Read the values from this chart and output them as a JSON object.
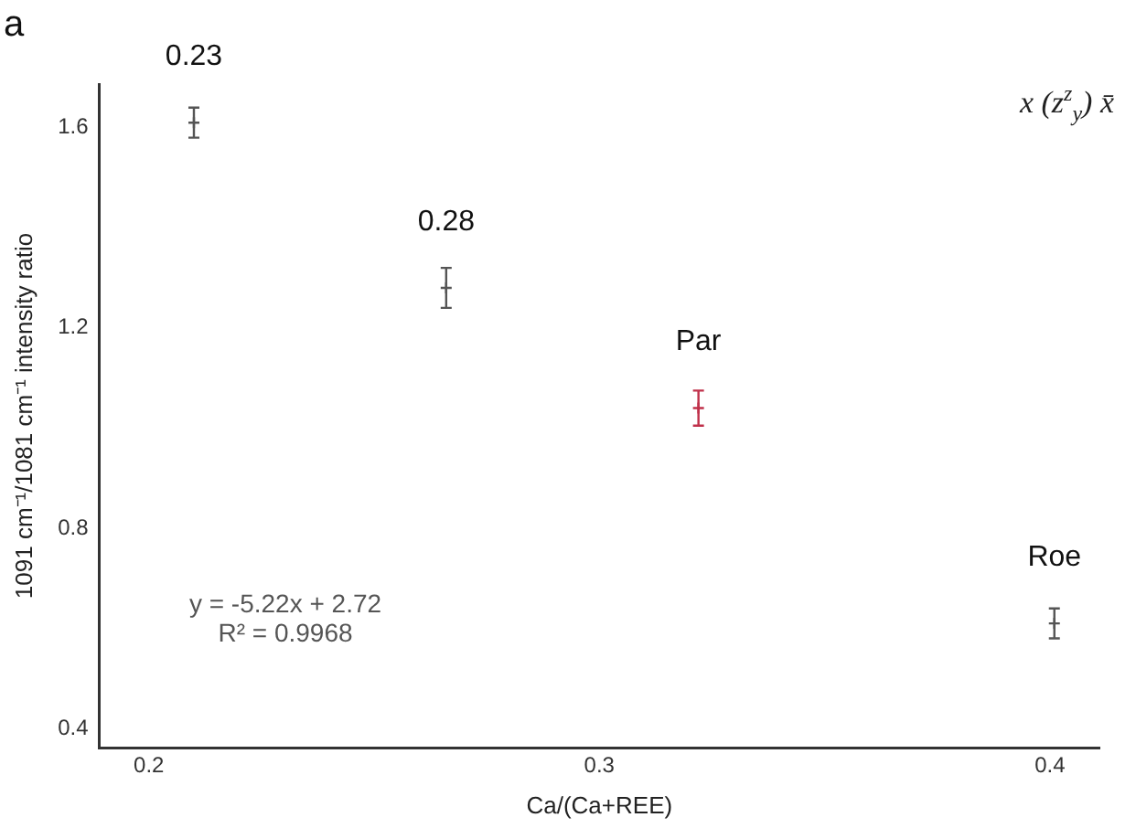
{
  "chart_data": {
    "type": "scatter",
    "title": "a",
    "xlabel": "Ca/(Ca+REE)",
    "ylabel": "1091 cm⁻¹/1081 cm⁻¹ intensity ratio",
    "x": [
      0.21,
      0.266,
      0.322,
      0.401
    ],
    "values": [
      1.61,
      1.28,
      1.04,
      0.61
    ],
    "errors": [
      0.03,
      0.04,
      0.035,
      0.03
    ],
    "colors": [
      "#555555",
      "#555555",
      "#c0304a",
      "#555555"
    ],
    "marker": "cross",
    "grid": false,
    "xlim": [
      0.189,
      0.411
    ],
    "xticks": [
      0.2,
      0.3,
      0.4
    ],
    "ylim": [
      0.362,
      1.687
    ],
    "yticks": [
      0.4,
      0.8,
      1.2,
      1.6
    ],
    "annotations": [
      {
        "text": "0.23",
        "x": 0.21,
        "y": 1.61
      },
      {
        "text": "0.28",
        "x": 0.266,
        "y": 1.28
      },
      {
        "text": "Par",
        "x": 0.322,
        "y": 1.04
      },
      {
        "text": "Roe",
        "x": 0.401,
        "y": 0.61
      },
      "y = -5.22x + 2.72",
      "R² = 0.9968",
      "x (z$^{z}$$_{y}$) x̄"
    ]
  }
}
